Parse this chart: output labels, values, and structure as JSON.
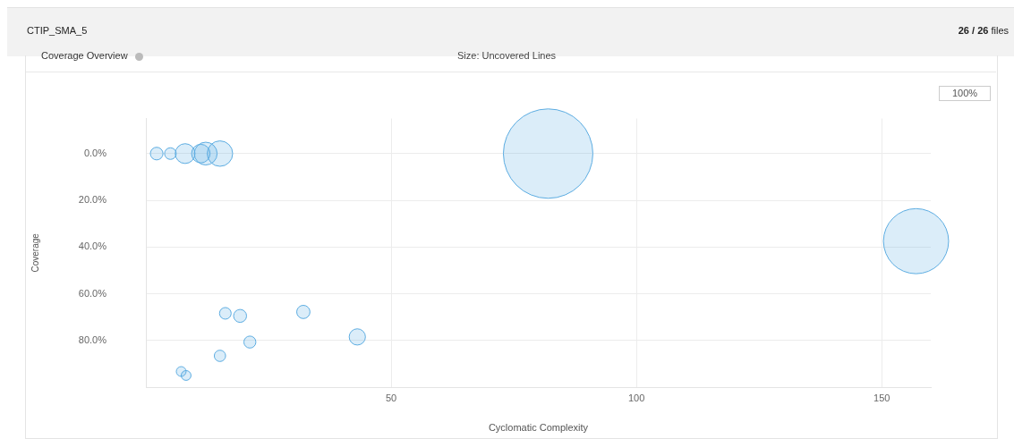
{
  "chart_data": {
    "type": "bubble",
    "title": "Coverage Overview",
    "subtitle": "Size: Uncovered Lines",
    "annotations": [
      "CTIP_SMA_5",
      "26 / 26 files",
      "100%"
    ],
    "xlabel": "Cyclomatic Complexity",
    "ylabel": "Coverage",
    "xlim": [
      0,
      160
    ],
    "xticks": [
      50,
      100,
      150
    ],
    "ylim": [
      100,
      -15
    ],
    "yticks": [
      {
        "value": 0,
        "label": "0.0%"
      },
      {
        "value": 20,
        "label": "20.0%"
      },
      {
        "value": 40,
        "label": "40.0%"
      },
      {
        "value": 60,
        "label": "60.0%"
      },
      {
        "value": 80,
        "label": "80.0%"
      }
    ],
    "grid": true,
    "legend": false,
    "series": [
      {
        "color": "#5dade2",
        "x": [
          2.2,
          5.0,
          8.0,
          11.2,
          12.2,
          15.1,
          82,
          157,
          16.2,
          19.2,
          32.1,
          43.1,
          21.2,
          15.1,
          7.2,
          8.2
        ],
        "values": [
          0,
          0,
          0,
          0,
          0,
          0,
          0,
          37.5,
          68.4,
          69.5,
          67.8,
          78.5,
          80.7,
          86.6,
          93.3,
          95
        ],
        "sizes": [
          0.02,
          0.017,
          0.049,
          0.043,
          0.065,
          0.081,
          1,
          0.53,
          0.017,
          0.021,
          0.022,
          0.033,
          0.018,
          0.016,
          0.012,
          0.012
        ]
      }
    ]
  }
}
